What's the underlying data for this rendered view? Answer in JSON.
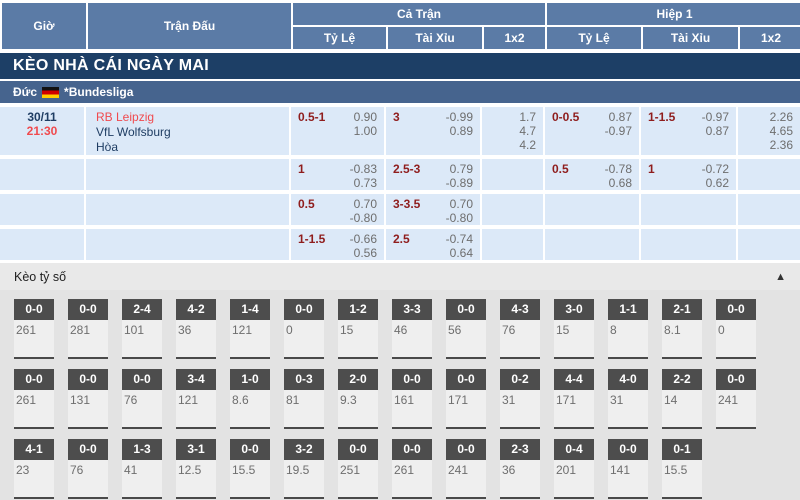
{
  "header": {
    "col_time": "Giờ",
    "col_match": "Trận Đấu",
    "col_full_match": "Cả Trận",
    "col_first_half": "Hiệp 1",
    "col_handicap_ft": "Tỷ Lệ",
    "col_over_under_ft": "Tài Xỉu",
    "col_1x2_ft": "1x2",
    "col_handicap_h1": "Tỷ Lệ",
    "col_over_under_h1": "Tài Xỉu",
    "col_1x2_h1": "1x2"
  },
  "banner_title": "KÈO NHÀ CÁI NGÀY MAI",
  "league_row": {
    "country": "Đức",
    "flag": "germany",
    "league_name": "*Bundesliga"
  },
  "match": {
    "date": "30/11",
    "time": "21:30",
    "home_team": "RB Leipzig",
    "away_team": "VfL Wolfsburg",
    "draw_label": "Hòa"
  },
  "odds_rows": [
    {
      "ft_hdp_line": "0.5-1",
      "ft_hdp_v1": "0.90",
      "ft_hdp_v2": "1.00",
      "ft_ou_line": "3",
      "ft_ou_v1": "-0.99",
      "ft_ou_v2": "0.89",
      "ft_x1": "1.7",
      "ft_x2": "4.7",
      "ft_x3": "4.2",
      "h1_hdp_line": "0-0.5",
      "h1_hdp_v1": "0.87",
      "h1_hdp_v2": "-0.97",
      "h1_ou_line": "1-1.5",
      "h1_ou_v1": "-0.97",
      "h1_ou_v2": "0.87",
      "h1_x1": "2.26",
      "h1_x2": "4.65",
      "h1_x3": "2.36"
    },
    {
      "ft_hdp_line": "1",
      "ft_hdp_v1": "-0.83",
      "ft_hdp_v2": "0.73",
      "ft_ou_line": "2.5-3",
      "ft_ou_v1": "0.79",
      "ft_ou_v2": "-0.89",
      "ft_x1": "",
      "ft_x2": "",
      "ft_x3": "",
      "h1_hdp_line": "0.5",
      "h1_hdp_v1": "-0.78",
      "h1_hdp_v2": "0.68",
      "h1_ou_line": "1",
      "h1_ou_v1": "-0.72",
      "h1_ou_v2": "0.62",
      "h1_x1": "",
      "h1_x2": "",
      "h1_x3": ""
    },
    {
      "ft_hdp_line": "0.5",
      "ft_hdp_v1": "0.70",
      "ft_hdp_v2": "-0.80",
      "ft_ou_line": "3-3.5",
      "ft_ou_v1": "0.70",
      "ft_ou_v2": "-0.80",
      "ft_x1": "",
      "ft_x2": "",
      "ft_x3": "",
      "h1_hdp_line": "",
      "h1_hdp_v1": "",
      "h1_hdp_v2": "",
      "h1_ou_line": "",
      "h1_ou_v1": "",
      "h1_ou_v2": "",
      "h1_x1": "",
      "h1_x2": "",
      "h1_x3": ""
    },
    {
      "ft_hdp_line": "1-1.5",
      "ft_hdp_v1": "-0.66",
      "ft_hdp_v2": "0.56",
      "ft_ou_line": "2.5",
      "ft_ou_v1": "-0.74",
      "ft_ou_v2": "0.64",
      "ft_x1": "",
      "ft_x2": "",
      "ft_x3": "",
      "h1_hdp_line": "",
      "h1_hdp_v1": "",
      "h1_hdp_v2": "",
      "h1_ou_line": "",
      "h1_ou_v1": "",
      "h1_ou_v2": "",
      "h1_x1": "",
      "h1_x2": "",
      "h1_x3": ""
    }
  ],
  "score_section": {
    "title": "Kèo tỷ số",
    "collapse_icon": "▲",
    "rows": [
      [
        {
          "score": "0-0",
          "odds": "261"
        },
        {
          "score": "0-0",
          "odds": "281"
        },
        {
          "score": "2-4",
          "odds": "101"
        },
        {
          "score": "4-2",
          "odds": "36"
        },
        {
          "score": "1-4",
          "odds": "121"
        },
        {
          "score": "0-0",
          "odds": "0"
        },
        {
          "score": "1-2",
          "odds": "15"
        },
        {
          "score": "3-3",
          "odds": "46"
        },
        {
          "score": "0-0",
          "odds": "56"
        },
        {
          "score": "4-3",
          "odds": "76"
        },
        {
          "score": "3-0",
          "odds": "15"
        },
        {
          "score": "1-1",
          "odds": "8"
        },
        {
          "score": "2-1",
          "odds": "8.1"
        },
        {
          "score": "0-0",
          "odds": "0"
        }
      ],
      [
        {
          "score": "0-0",
          "odds": "261"
        },
        {
          "score": "0-0",
          "odds": "131"
        },
        {
          "score": "0-0",
          "odds": "76"
        },
        {
          "score": "3-4",
          "odds": "121"
        },
        {
          "score": "1-0",
          "odds": "8.6"
        },
        {
          "score": "0-3",
          "odds": "81"
        },
        {
          "score": "2-0",
          "odds": "9.3"
        },
        {
          "score": "0-0",
          "odds": "161"
        },
        {
          "score": "0-0",
          "odds": "171"
        },
        {
          "score": "0-2",
          "odds": "31"
        },
        {
          "score": "4-4",
          "odds": "171"
        },
        {
          "score": "4-0",
          "odds": "31"
        },
        {
          "score": "2-2",
          "odds": "14"
        },
        {
          "score": "0-0",
          "odds": "241"
        }
      ],
      [
        {
          "score": "4-1",
          "odds": "23"
        },
        {
          "score": "0-0",
          "odds": "76"
        },
        {
          "score": "1-3",
          "odds": "41"
        },
        {
          "score": "3-1",
          "odds": "12.5"
        },
        {
          "score": "0-0",
          "odds": "15.5"
        },
        {
          "score": "3-2",
          "odds": "19.5"
        },
        {
          "score": "0-0",
          "odds": "251"
        },
        {
          "score": "0-0",
          "odds": "261"
        },
        {
          "score": "0-0",
          "odds": "241"
        },
        {
          "score": "2-3",
          "odds": "36"
        },
        {
          "score": "0-4",
          "odds": "201"
        },
        {
          "score": "0-0",
          "odds": "141"
        },
        {
          "score": "0-1",
          "odds": "15.5"
        }
      ]
    ]
  },
  "colors": {
    "header_blue": "#5b7ba6",
    "banner_navy": "#1d3f66",
    "league_blue": "#46648e",
    "row_light_blue": "#dce9f8",
    "accent_red": "#f04a4e",
    "handicap_maroon": "#8f1d1d",
    "odds_gray": "#6e6e6e",
    "navy_text": "#1f3d63",
    "score_box_dark": "#4d4d4d"
  }
}
